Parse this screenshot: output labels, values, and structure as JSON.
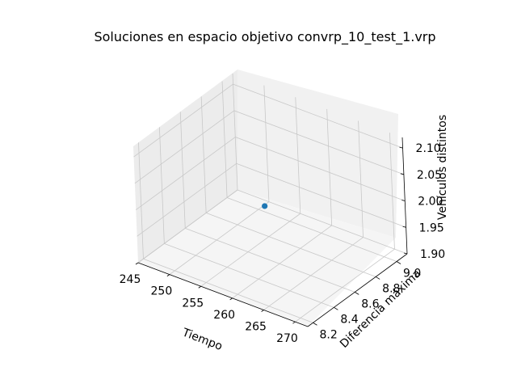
{
  "chart_data": {
    "type": "scatter",
    "title": "Soluciones en espacio objetivo convrp_10_test_1.vrp",
    "xlabel": "Tiempo",
    "ylabel": "Diferencia máxima",
    "zlabel": "Vehículos distintos",
    "xlim": [
      245,
      272
    ],
    "ylim": [
      8.15,
      9.1
    ],
    "zlim": [
      1.9,
      2.12
    ],
    "x_ticks": [
      "245",
      "250",
      "255",
      "260",
      "265",
      "270"
    ],
    "y_ticks": [
      "8.2",
      "8.4",
      "8.6",
      "8.8",
      "9.0"
    ],
    "z_ticks": [
      "1.90",
      "1.95",
      "2.00",
      "2.05",
      "2.10"
    ],
    "grid": true,
    "points": [
      {
        "x": 258,
        "y": 8.6,
        "z": 2.0
      }
    ],
    "colors": {
      "point": "#1f77b4",
      "pane_left": "#ececec",
      "pane_back": "#f1f1f1",
      "pane_floor": "#f5f5f5",
      "grid": "#c8c8c8"
    }
  }
}
